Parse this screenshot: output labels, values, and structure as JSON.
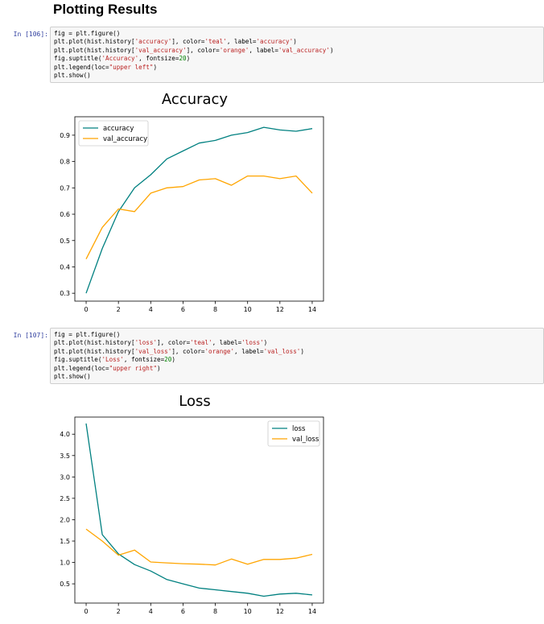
{
  "page": {
    "heading": "Plotting Results"
  },
  "cells": [
    {
      "prompt": "In [106]:",
      "code": [
        [
          [
            "fig = plt.figure()",
            "t"
          ]
        ],
        [
          [
            "plt.plot(hist.history[",
            "t"
          ],
          [
            "'accuracy'",
            "s"
          ],
          [
            "], color=",
            "t"
          ],
          [
            "'teal'",
            "s"
          ],
          [
            ", label=",
            "t"
          ],
          [
            "'accuracy'",
            "s"
          ],
          [
            ")",
            "t"
          ]
        ],
        [
          [
            "plt.plot(hist.history[",
            "t"
          ],
          [
            "'val_accuracy'",
            "s"
          ],
          [
            "], color=",
            "t"
          ],
          [
            "'orange'",
            "s"
          ],
          [
            ", label=",
            "t"
          ],
          [
            "'val_accuracy'",
            "s"
          ],
          [
            ")",
            "t"
          ]
        ],
        [
          [
            "fig.suptitle(",
            "t"
          ],
          [
            "'Accuracy'",
            "s"
          ],
          [
            ", fontsize=",
            "t"
          ],
          [
            "20",
            "n"
          ],
          [
            ")",
            "t"
          ]
        ],
        [
          [
            "plt.legend(loc=",
            "t"
          ],
          [
            "\"upper left\"",
            "s"
          ],
          [
            ")",
            "t"
          ]
        ],
        [
          [
            "plt.show()",
            "t"
          ]
        ]
      ]
    },
    {
      "prompt": "In [107]:",
      "code": [
        [
          [
            "fig = plt.figure()",
            "t"
          ]
        ],
        [
          [
            "plt.plot(hist.history[",
            "t"
          ],
          [
            "'loss'",
            "s"
          ],
          [
            "], color=",
            "t"
          ],
          [
            "'teal'",
            "s"
          ],
          [
            ", label=",
            "t"
          ],
          [
            "'loss'",
            "s"
          ],
          [
            ")",
            "t"
          ]
        ],
        [
          [
            "plt.plot(hist.history[",
            "t"
          ],
          [
            "'val_loss'",
            "s"
          ],
          [
            "], color=",
            "t"
          ],
          [
            "'orange'",
            "s"
          ],
          [
            ", label=",
            "t"
          ],
          [
            "'val_loss'",
            "s"
          ],
          [
            ")",
            "t"
          ]
        ],
        [
          [
            "fig.suptitle(",
            "t"
          ],
          [
            "'Loss'",
            "s"
          ],
          [
            ", fontsize=",
            "t"
          ],
          [
            "20",
            "n"
          ],
          [
            ")",
            "t"
          ]
        ],
        [
          [
            "plt.legend(loc=",
            "t"
          ],
          [
            "\"upper right\"",
            "s"
          ],
          [
            ")",
            "t"
          ]
        ],
        [
          [
            "plt.show()",
            "t"
          ]
        ]
      ]
    }
  ],
  "chart_data": [
    {
      "type": "line",
      "title": "Accuracy",
      "x": [
        0,
        1,
        2,
        3,
        4,
        5,
        6,
        7,
        8,
        9,
        10,
        11,
        12,
        13,
        14
      ],
      "xticks": [
        0,
        2,
        4,
        6,
        8,
        10,
        12,
        14
      ],
      "xlim": [
        -0.7,
        14.7
      ],
      "ylim": [
        0.27,
        0.97
      ],
      "yticks": [
        0.3,
        0.4,
        0.5,
        0.6,
        0.7,
        0.8,
        0.9
      ],
      "ytick_labels": [
        "0.3",
        "0.4",
        "0.5",
        "0.6",
        "0.7",
        "0.8",
        "0.9"
      ],
      "legend": "upper left",
      "grid": false,
      "series": [
        {
          "name": "accuracy",
          "color": "#008080",
          "values": [
            0.3,
            0.47,
            0.61,
            0.7,
            0.75,
            0.81,
            0.84,
            0.87,
            0.88,
            0.9,
            0.91,
            0.93,
            0.92,
            0.915,
            0.925
          ]
        },
        {
          "name": "val_accuracy",
          "color": "#FFA500",
          "values": [
            0.43,
            0.55,
            0.62,
            0.61,
            0.68,
            0.7,
            0.705,
            0.73,
            0.735,
            0.71,
            0.745,
            0.745,
            0.735,
            0.745,
            0.68
          ]
        }
      ]
    },
    {
      "type": "line",
      "title": "Loss",
      "x": [
        0,
        1,
        2,
        3,
        4,
        5,
        6,
        7,
        8,
        9,
        10,
        11,
        12,
        13,
        14
      ],
      "xticks": [
        0,
        2,
        4,
        6,
        8,
        10,
        12,
        14
      ],
      "xlim": [
        -0.7,
        14.7
      ],
      "ylim": [
        0.05,
        4.4
      ],
      "yticks": [
        0.5,
        1.0,
        1.5,
        2.0,
        2.5,
        3.0,
        3.5,
        4.0
      ],
      "ytick_labels": [
        "0.5",
        "1.0",
        "1.5",
        "2.0",
        "2.5",
        "3.0",
        "3.5",
        "4.0"
      ],
      "legend": "upper right",
      "grid": false,
      "series": [
        {
          "name": "loss",
          "color": "#008080",
          "values": [
            4.25,
            1.65,
            1.2,
            0.95,
            0.8,
            0.6,
            0.5,
            0.4,
            0.36,
            0.32,
            0.28,
            0.21,
            0.26,
            0.28,
            0.24
          ]
        },
        {
          "name": "val_loss",
          "color": "#FFA500",
          "values": [
            1.78,
            1.5,
            1.17,
            1.29,
            1.01,
            0.99,
            0.97,
            0.96,
            0.94,
            1.08,
            0.96,
            1.07,
            1.07,
            1.1,
            1.19
          ]
        }
      ]
    }
  ]
}
